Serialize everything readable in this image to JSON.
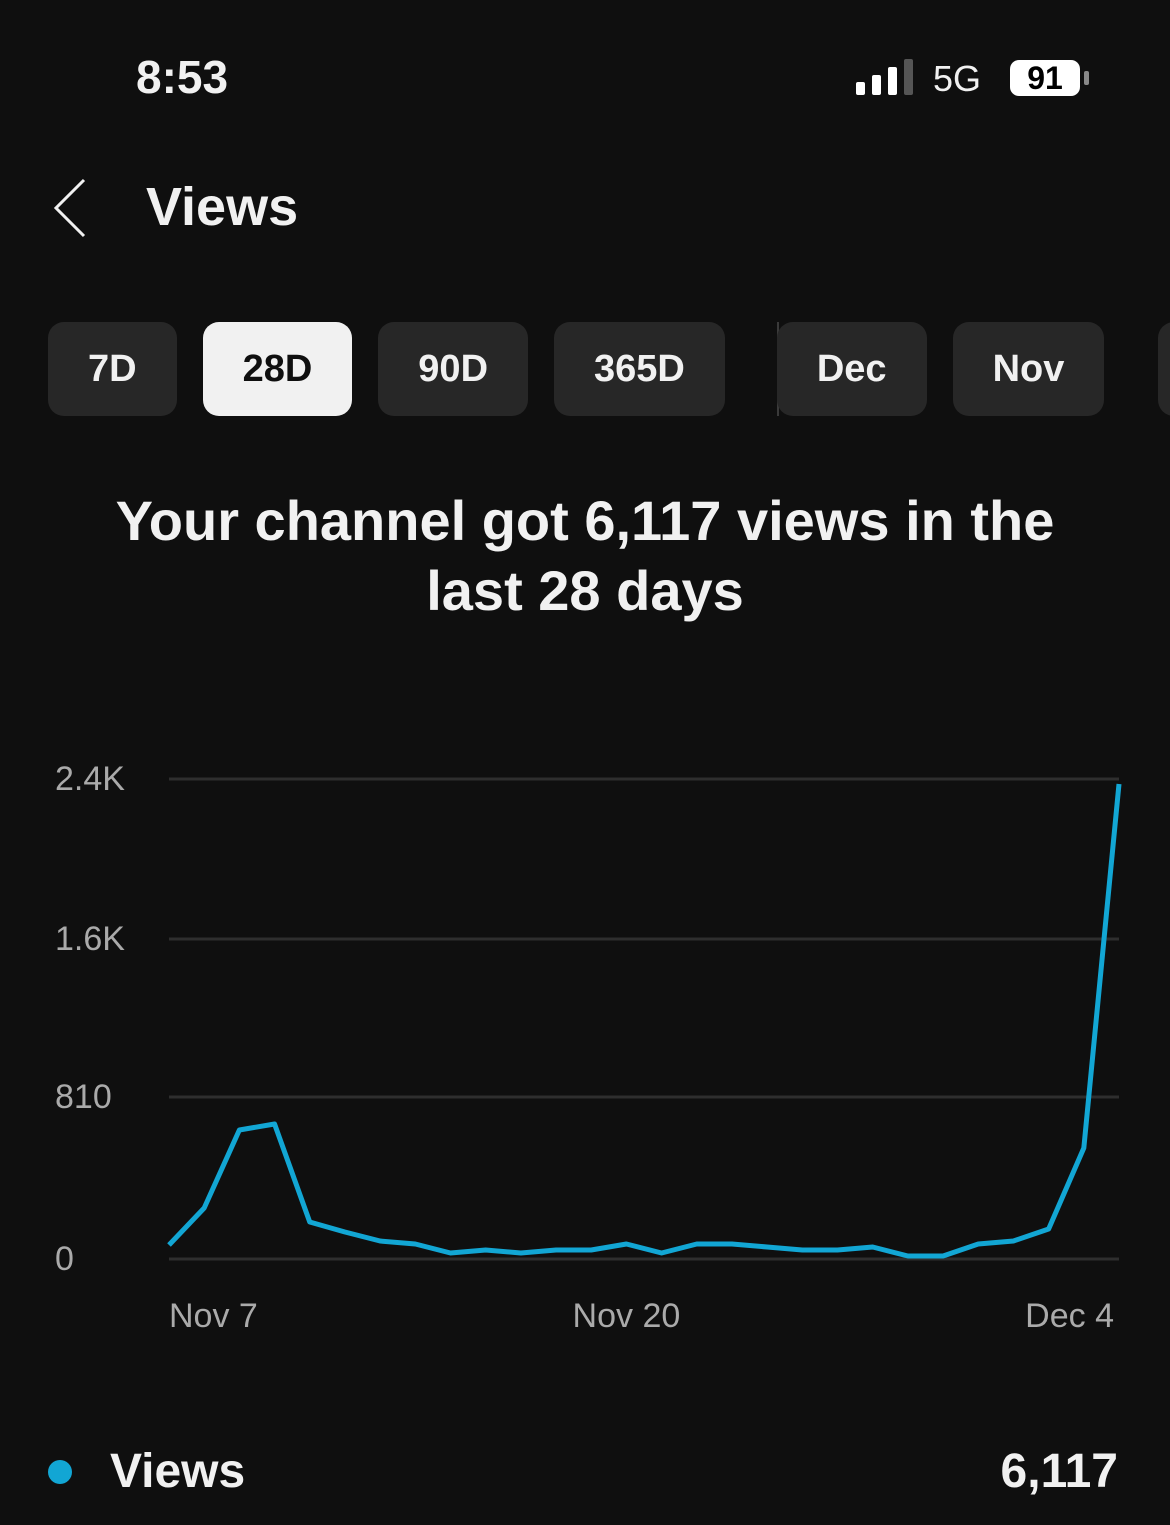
{
  "status_bar": {
    "time": "8:53",
    "network": "5G",
    "battery": "91"
  },
  "header": {
    "title": "Views"
  },
  "tabs": [
    {
      "label": "7D"
    },
    {
      "label": "28D",
      "active": true
    },
    {
      "label": "90D"
    },
    {
      "label": "365D"
    },
    {
      "label": "Dec"
    },
    {
      "label": "Nov"
    }
  ],
  "headline": "Your channel got 6,117 views in the last 28 days",
  "legend": {
    "total": "6,117"
  },
  "chart_data": {
    "type": "line",
    "categories": [
      "Nov 7",
      null,
      null,
      null,
      null,
      null,
      null,
      null,
      null,
      null,
      null,
      null,
      null,
      "Nov 20",
      null,
      null,
      null,
      null,
      null,
      null,
      null,
      null,
      null,
      null,
      null,
      null,
      null,
      "Dec 4"
    ],
    "series": [
      {
        "name": "Views",
        "color": "#12a6d4",
        "values": [
          70,
          255,
          645,
          675,
          185,
          135,
          90,
          75,
          30,
          45,
          30,
          45,
          45,
          75,
          30,
          75,
          75,
          60,
          45,
          45,
          60,
          15,
          15,
          75,
          90,
          150,
          555,
          2375
        ]
      }
    ],
    "ylim": [
      0,
      2400
    ],
    "yticks": [
      0,
      810,
      {
        "value": 1600,
        "label": "1.6K"
      },
      {
        "value": 2400,
        "label": "2.4K"
      }
    ],
    "grid": true
  }
}
